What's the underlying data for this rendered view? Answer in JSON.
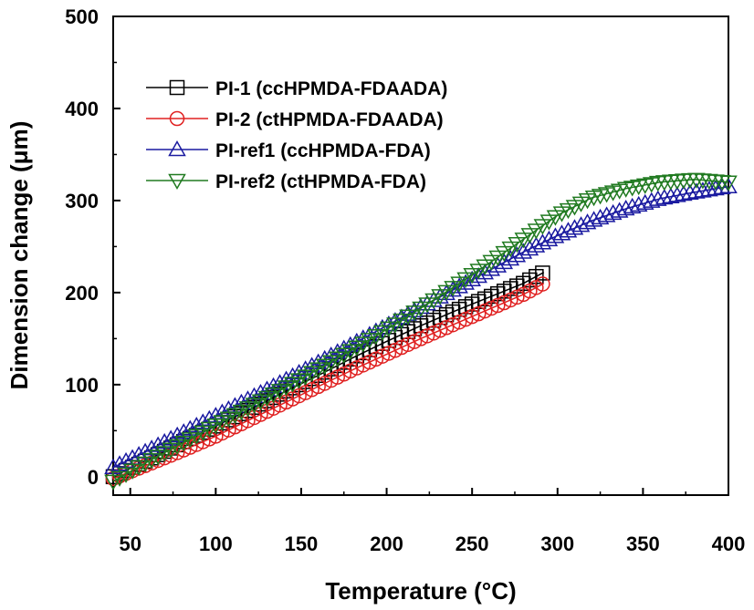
{
  "chart_data": {
    "type": "scatter",
    "xlabel": "Temperature (°C)",
    "ylabel": "Dimension change (μm)",
    "xlim": [
      40,
      400
    ],
    "ylim": [
      -20,
      500
    ],
    "xticks": [
      50,
      100,
      150,
      200,
      250,
      300,
      350,
      400
    ],
    "yticks": [
      0,
      100,
      200,
      300,
      400,
      500
    ],
    "legend_position": "top-left",
    "grid": false,
    "series": [
      {
        "name": "PI-1 (ccHPMDA-FDAADA)",
        "color": "#000000",
        "marker": "square",
        "points": [
          [
            40,
            0
          ],
          [
            60,
            18
          ],
          [
            80,
            37
          ],
          [
            100,
            55
          ],
          [
            120,
            73
          ],
          [
            140,
            92
          ],
          [
            160,
            110
          ],
          [
            180,
            129
          ],
          [
            200,
            147
          ],
          [
            220,
            164
          ],
          [
            240,
            180
          ],
          [
            260,
            195
          ],
          [
            280,
            210
          ],
          [
            292,
            222
          ]
        ]
      },
      {
        "name": "PI-2 (ctHPMDA-FDAADA)",
        "color": "#e02020",
        "marker": "circle",
        "points": [
          [
            40,
            -2
          ],
          [
            60,
            13
          ],
          [
            80,
            28
          ],
          [
            100,
            44
          ],
          [
            120,
            62
          ],
          [
            140,
            80
          ],
          [
            160,
            98
          ],
          [
            180,
            116
          ],
          [
            200,
            133
          ],
          [
            220,
            150
          ],
          [
            240,
            166
          ],
          [
            260,
            182
          ],
          [
            280,
            198
          ],
          [
            292,
            210
          ]
        ]
      },
      {
        "name": "PI-ref1 (ccHPMDA-FDA)",
        "color": "#1a1aa0",
        "marker": "triangle-up",
        "points": [
          [
            40,
            10
          ],
          [
            60,
            28
          ],
          [
            80,
            47
          ],
          [
            100,
            66
          ],
          [
            120,
            85
          ],
          [
            140,
            104
          ],
          [
            160,
            124
          ],
          [
            180,
            144
          ],
          [
            200,
            164
          ],
          [
            220,
            184
          ],
          [
            240,
            204
          ],
          [
            260,
            224
          ],
          [
            280,
            244
          ],
          [
            300,
            262
          ],
          [
            320,
            278
          ],
          [
            340,
            291
          ],
          [
            360,
            302
          ],
          [
            380,
            309
          ],
          [
            400,
            315
          ]
        ]
      },
      {
        "name": "PI-ref2 (ctHPMDA-FDA)",
        "color": "#207a20",
        "marker": "triangle-down",
        "points": [
          [
            40,
            -5
          ],
          [
            60,
            16
          ],
          [
            80,
            36
          ],
          [
            100,
            56
          ],
          [
            120,
            76
          ],
          [
            140,
            96
          ],
          [
            160,
            117
          ],
          [
            180,
            138
          ],
          [
            200,
            160
          ],
          [
            220,
            183
          ],
          [
            240,
            207
          ],
          [
            260,
            232
          ],
          [
            280,
            258
          ],
          [
            300,
            284
          ],
          [
            320,
            303
          ],
          [
            340,
            313
          ],
          [
            360,
            320
          ],
          [
            380,
            323
          ],
          [
            400,
            320
          ]
        ]
      }
    ]
  }
}
